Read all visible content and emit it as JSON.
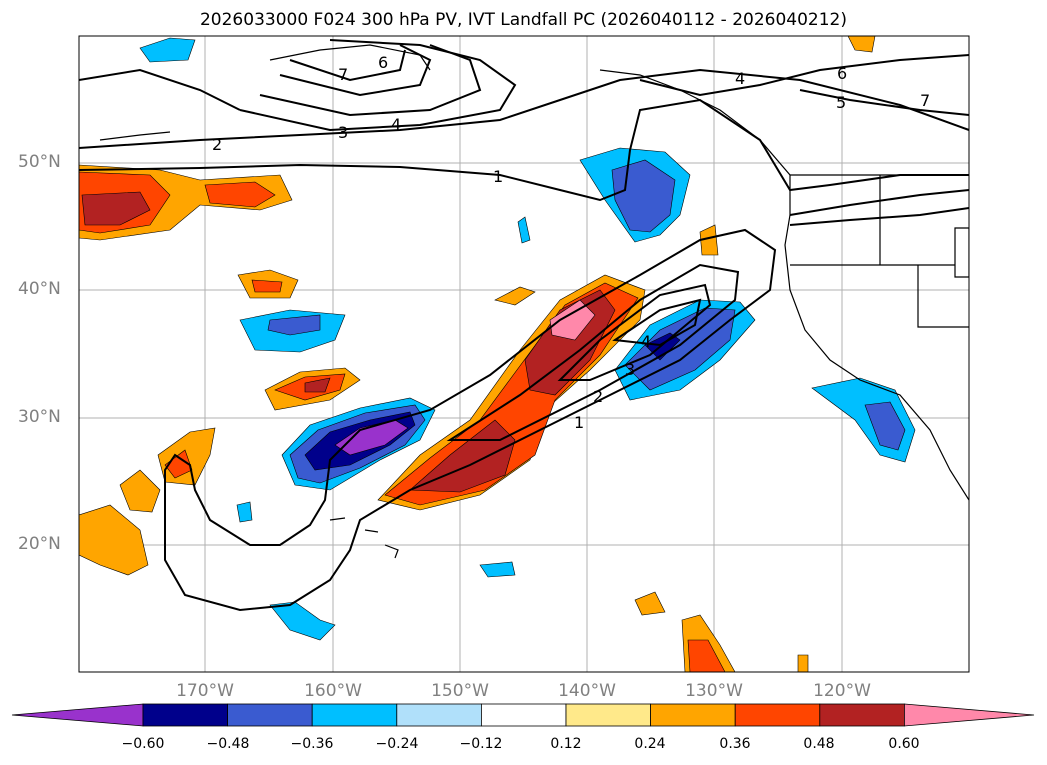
{
  "title": "2026033000 F024 300 hPa PV, IVT Landfall PC (2026040112 - 2026040212)",
  "lat_labels": [
    "50°N",
    "40°N",
    "30°N",
    "20°N"
  ],
  "lon_labels": [
    "170°W",
    "160°W",
    "150°W",
    "140°W",
    "130°W",
    "120°W"
  ],
  "contour_labels": [
    "1",
    "2",
    "3",
    "4",
    "5",
    "6",
    "7"
  ],
  "colorbar": {
    "ticks": [
      "−0.60",
      "−0.48",
      "−0.36",
      "−0.24",
      "−0.12",
      "0.12",
      "0.24",
      "0.36",
      "0.48",
      "0.60"
    ],
    "colors": [
      "#9932CC",
      "#00008B",
      "#3A5BD0",
      "#00BFFF",
      "#B0E0FA",
      "#FFFFFF",
      "#FFE98A",
      "#FFA500",
      "#FF4500",
      "#B22222",
      "#FF88AA"
    ]
  }
}
